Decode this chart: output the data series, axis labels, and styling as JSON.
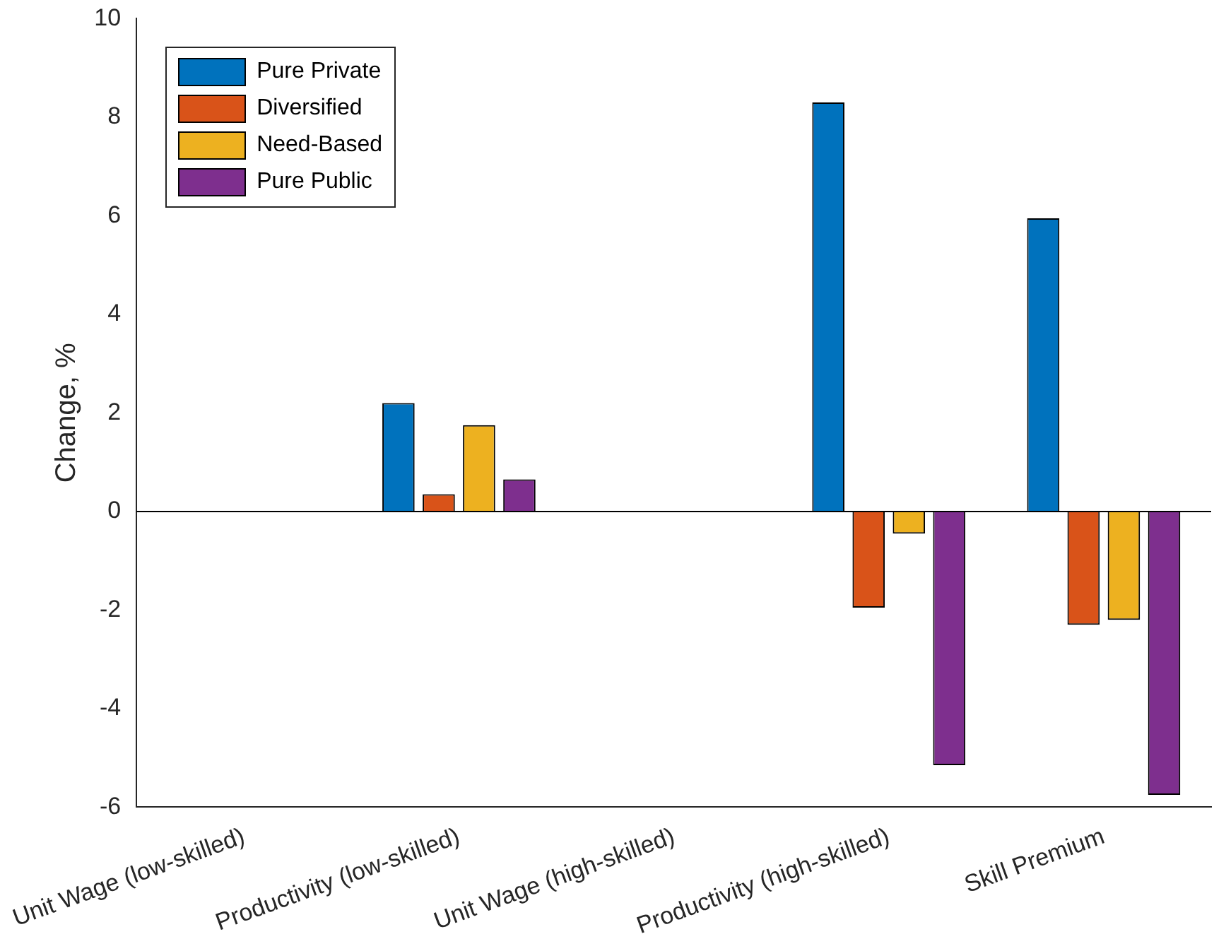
{
  "chart_data": {
    "type": "bar",
    "ylabel": "Change, %",
    "categories": [
      "Unit Wage (low-skilled)",
      "Productivity (low-skilled)",
      "Unit Wage (high-skilled)",
      "Productivity (high-skilled)",
      "Skill Premium"
    ],
    "series": [
      {
        "name": "Pure Private",
        "color": "#0072bd",
        "values": [
          0,
          2.2,
          0,
          8.3,
          5.95
        ]
      },
      {
        "name": "Diversified",
        "color": "#d95319",
        "values": [
          0,
          0.35,
          0,
          -1.95,
          -2.3
        ]
      },
      {
        "name": "Need-Based",
        "color": "#edb120",
        "values": [
          0,
          1.75,
          0,
          -0.45,
          -2.2
        ]
      },
      {
        "name": "Pure Public",
        "color": "#7e2f8e",
        "values": [
          0,
          0.65,
          0,
          -5.15,
          -5.75
        ]
      }
    ],
    "ylim": [
      -6,
      10
    ],
    "yticks": [
      -6,
      -4,
      -2,
      0,
      2,
      4,
      6,
      8,
      10
    ],
    "grid": false,
    "legend": "top left",
    "ref_lines": [
      {
        "axis": "y",
        "value": 0,
        "color": "#000000"
      }
    ]
  }
}
